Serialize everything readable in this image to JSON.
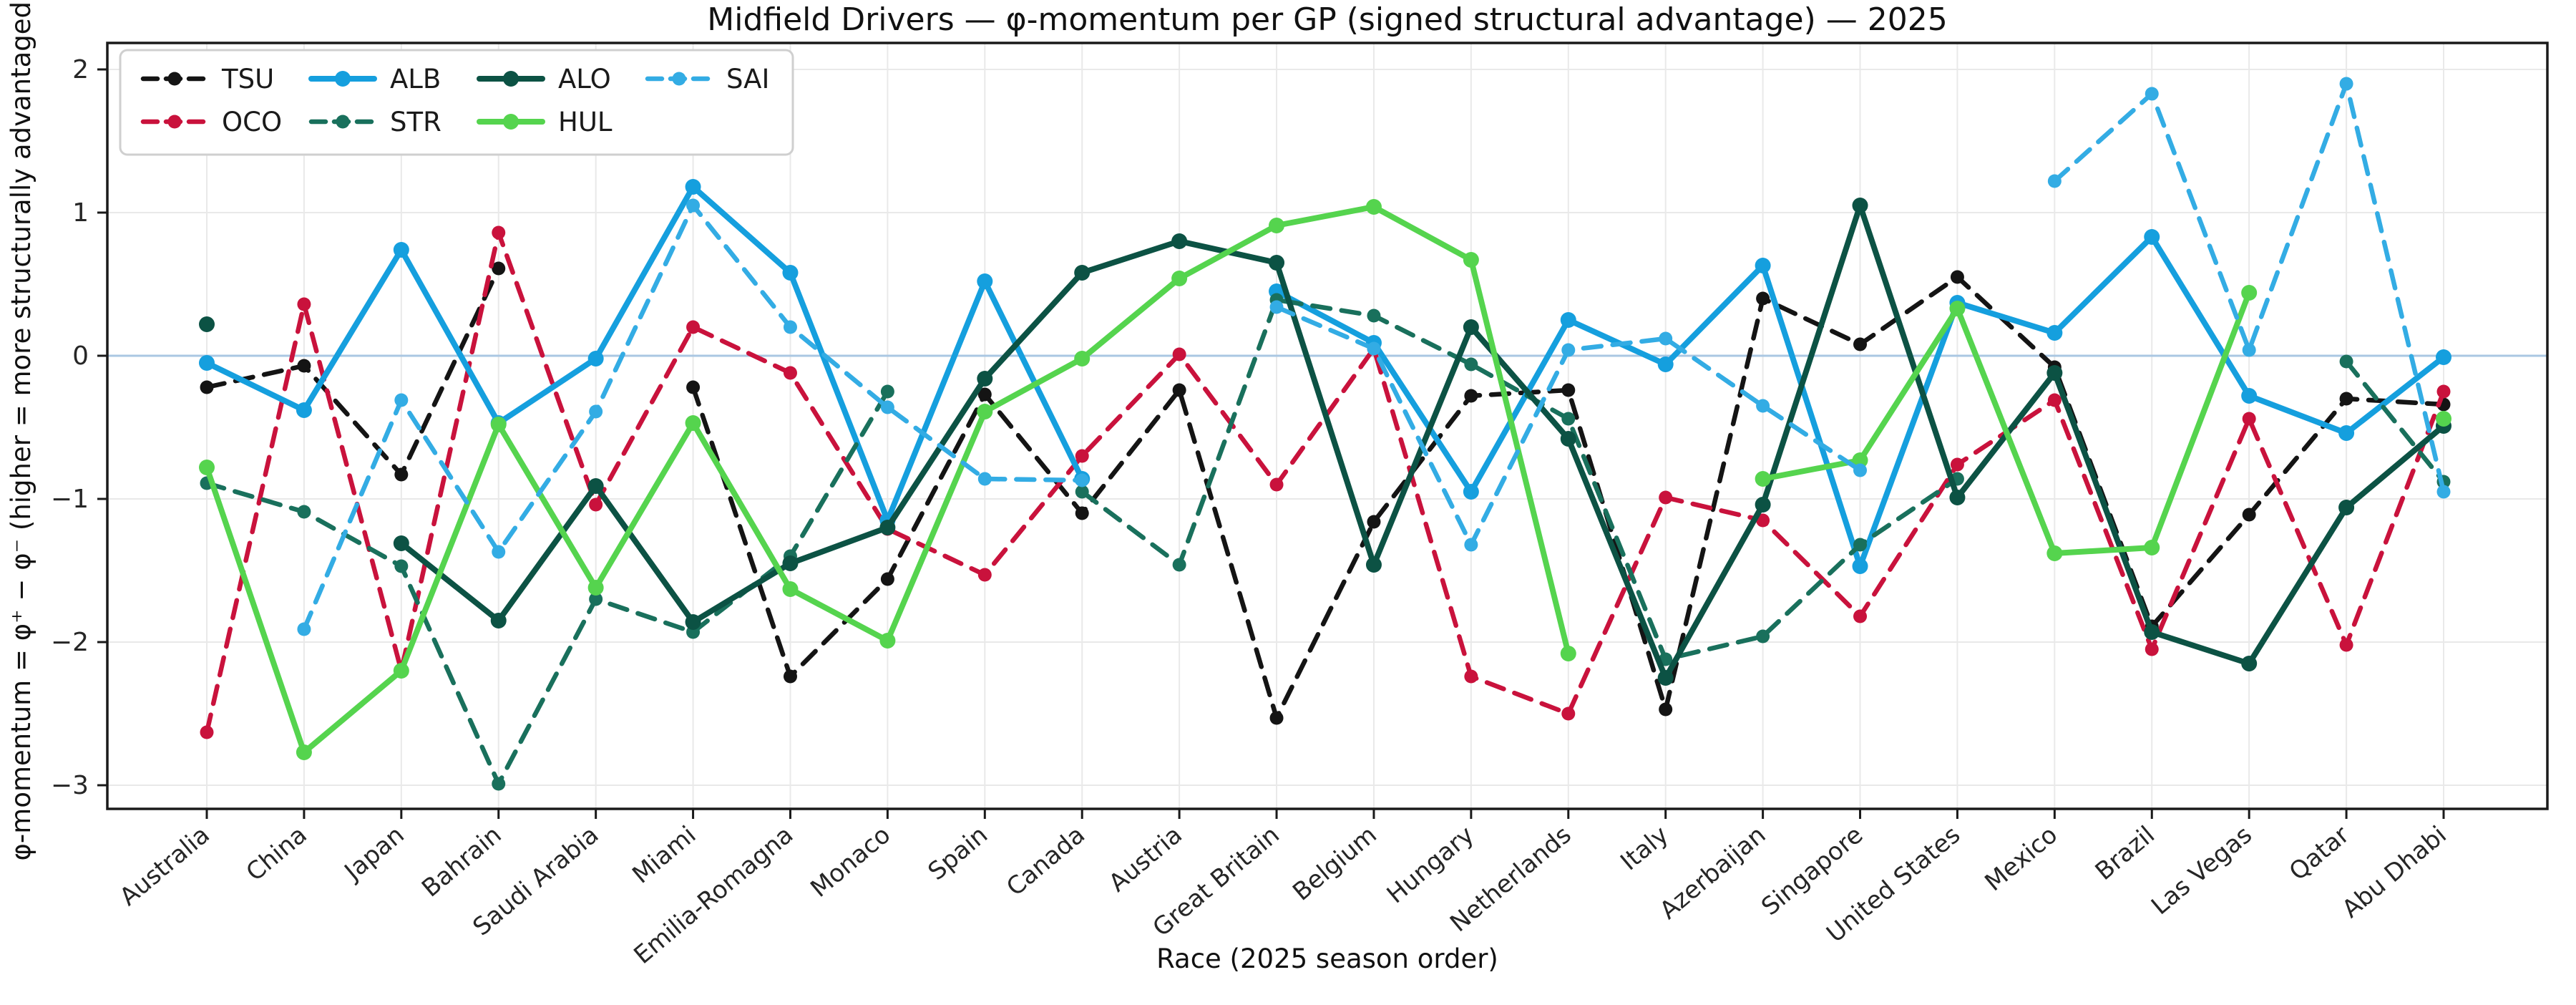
{
  "title": "Midfield Drivers — φ-momentum per GP (signed structural advantage) — 2025",
  "axes": {
    "x_label": "Race (2025 season order)",
    "y_label": "φ-momentum = φ⁺ − φ⁻  (higher = more structurally advantaged)",
    "y_ticks": [
      2,
      1,
      0,
      -1,
      -2,
      -3
    ]
  },
  "colors": {
    "zero_line": "#aac7e2",
    "grid": "#e9e9e9",
    "spine": "#1a1a1a",
    "tick_text": "#262626",
    "legend_border": "#cfcfcf"
  },
  "chart_data": {
    "type": "line",
    "title": "Midfield Drivers — φ-momentum per GP (signed structural advantage) — 2025",
    "xlabel": "Race (2025 season order)",
    "ylabel": "φ-momentum = φ⁺ − φ⁻  (higher = more structurally advantaged)",
    "ylim": [
      -3.17,
      2.19
    ],
    "grid": true,
    "zero_line": true,
    "legend_position": "upper left",
    "categories": [
      "Australia",
      "China",
      "Japan",
      "Bahrain",
      "Saudi Arabia",
      "Miami",
      "Emilia-Romagna",
      "Monaco",
      "Spain",
      "Canada",
      "Austria",
      "Great Britain",
      "Belgium",
      "Hungary",
      "Netherlands",
      "Italy",
      "Azerbaijan",
      "Singapore",
      "United States",
      "Mexico",
      "Brazil",
      "Las Vegas",
      "Qatar",
      "Abu Dhabi"
    ],
    "series": [
      {
        "name": "TSU",
        "color": "#141414",
        "dashed": true,
        "values": [
          -0.22,
          -0.07,
          -0.83,
          0.61,
          null,
          -0.22,
          -2.24,
          -1.56,
          -0.27,
          -1.1,
          -0.24,
          -2.53,
          -1.16,
          -0.28,
          -0.24,
          -2.47,
          0.4,
          0.08,
          0.55,
          -0.08,
          -1.89,
          -1.11,
          -0.3,
          -0.34
        ]
      },
      {
        "name": "OCO",
        "color": "#c9123c",
        "dashed": true,
        "values": [
          -2.63,
          0.36,
          -2.2,
          0.86,
          -1.04,
          0.2,
          -0.12,
          -1.21,
          -1.53,
          -0.7,
          0.01,
          -0.9,
          0.05,
          -2.24,
          -2.5,
          -0.99,
          -1.15,
          -1.82,
          -0.76,
          -0.31,
          -2.05,
          -0.44,
          -2.02,
          -0.25
        ]
      },
      {
        "name": "ALB",
        "color": "#159fde",
        "dashed": false,
        "values": [
          -0.05,
          -0.38,
          0.74,
          -0.47,
          -0.02,
          1.18,
          0.58,
          -1.15,
          0.52,
          -0.86,
          null,
          0.45,
          0.09,
          -0.95,
          0.25,
          -0.06,
          0.63,
          -1.47,
          0.37,
          0.16,
          0.83,
          -0.28,
          -0.54,
          -0.01
        ]
      },
      {
        "name": "STR",
        "color": "#19705c",
        "dashed": true,
        "values": [
          -0.89,
          -1.09,
          -1.47,
          -2.99,
          -1.7,
          -1.93,
          -1.4,
          -0.25,
          null,
          -0.95,
          -1.46,
          0.39,
          0.28,
          -0.06,
          -0.44,
          -2.12,
          -1.96,
          -1.32,
          -0.86,
          null,
          null,
          null,
          -0.04,
          -0.88
        ]
      },
      {
        "name": "ALO",
        "color": "#0c5244",
        "dashed": false,
        "values": [
          0.22,
          null,
          -1.31,
          -1.85,
          -0.91,
          -1.86,
          -1.45,
          -1.2,
          -0.16,
          0.58,
          0.8,
          0.65,
          -1.46,
          0.2,
          -0.58,
          -2.25,
          -1.04,
          1.05,
          -0.99,
          -0.12,
          -1.93,
          -2.15,
          -1.06,
          -0.49
        ]
      },
      {
        "name": "HUL",
        "color": "#55d44e",
        "dashed": false,
        "values": [
          -0.78,
          -2.77,
          -2.2,
          -0.48,
          -1.62,
          -0.47,
          -1.63,
          -1.99,
          -0.39,
          -0.02,
          0.54,
          0.91,
          1.04,
          0.67,
          -2.08,
          null,
          -0.86,
          -0.73,
          0.33,
          -1.38,
          -1.34,
          0.44,
          null,
          -0.44
        ]
      },
      {
        "name": "SAI",
        "color": "#33ace4",
        "dashed": true,
        "values": [
          null,
          -1.91,
          -0.31,
          -1.37,
          -0.39,
          1.05,
          0.2,
          -0.36,
          -0.86,
          -0.87,
          null,
          0.34,
          0.05,
          -1.32,
          0.04,
          0.12,
          -0.35,
          -0.8,
          null,
          1.22,
          1.83,
          0.04,
          1.9,
          -0.95
        ]
      }
    ],
    "legend_columns": [
      [
        "TSU",
        "OCO"
      ],
      [
        "ALB",
        "STR"
      ],
      [
        "ALO",
        "HUL"
      ],
      [
        "SAI"
      ]
    ]
  }
}
